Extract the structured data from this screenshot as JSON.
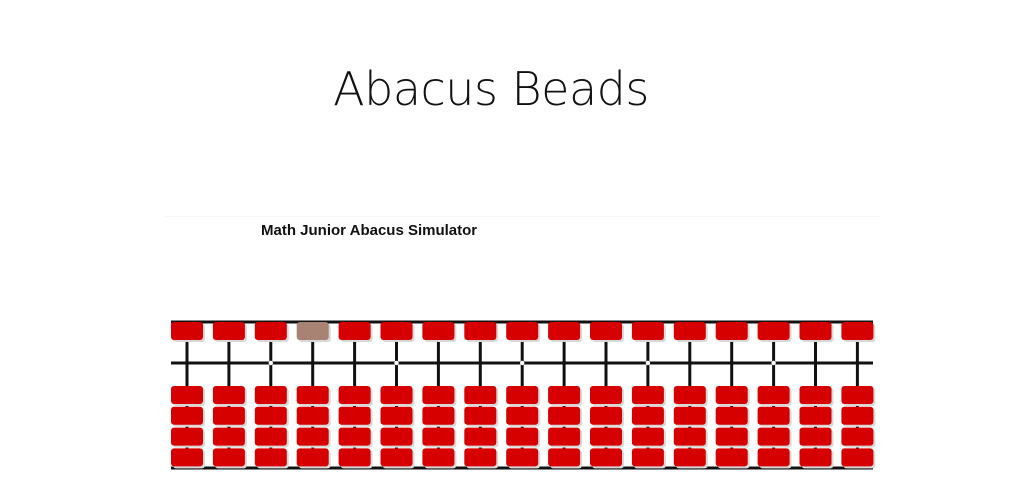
{
  "page": {
    "title": "Abacus Beads"
  },
  "simulator": {
    "title": "Math Junior Abacus Simulator",
    "rods": 17,
    "upper_beads_per_rod": 1,
    "lower_beads_per_rod": 4,
    "highlighted_upper_bead_rod": 4,
    "unit_marker_rods": [
      3,
      6,
      9,
      12,
      15
    ],
    "colors": {
      "bead": "#d60000",
      "bead_highlight": "#a88272",
      "frame": "#111111"
    }
  }
}
